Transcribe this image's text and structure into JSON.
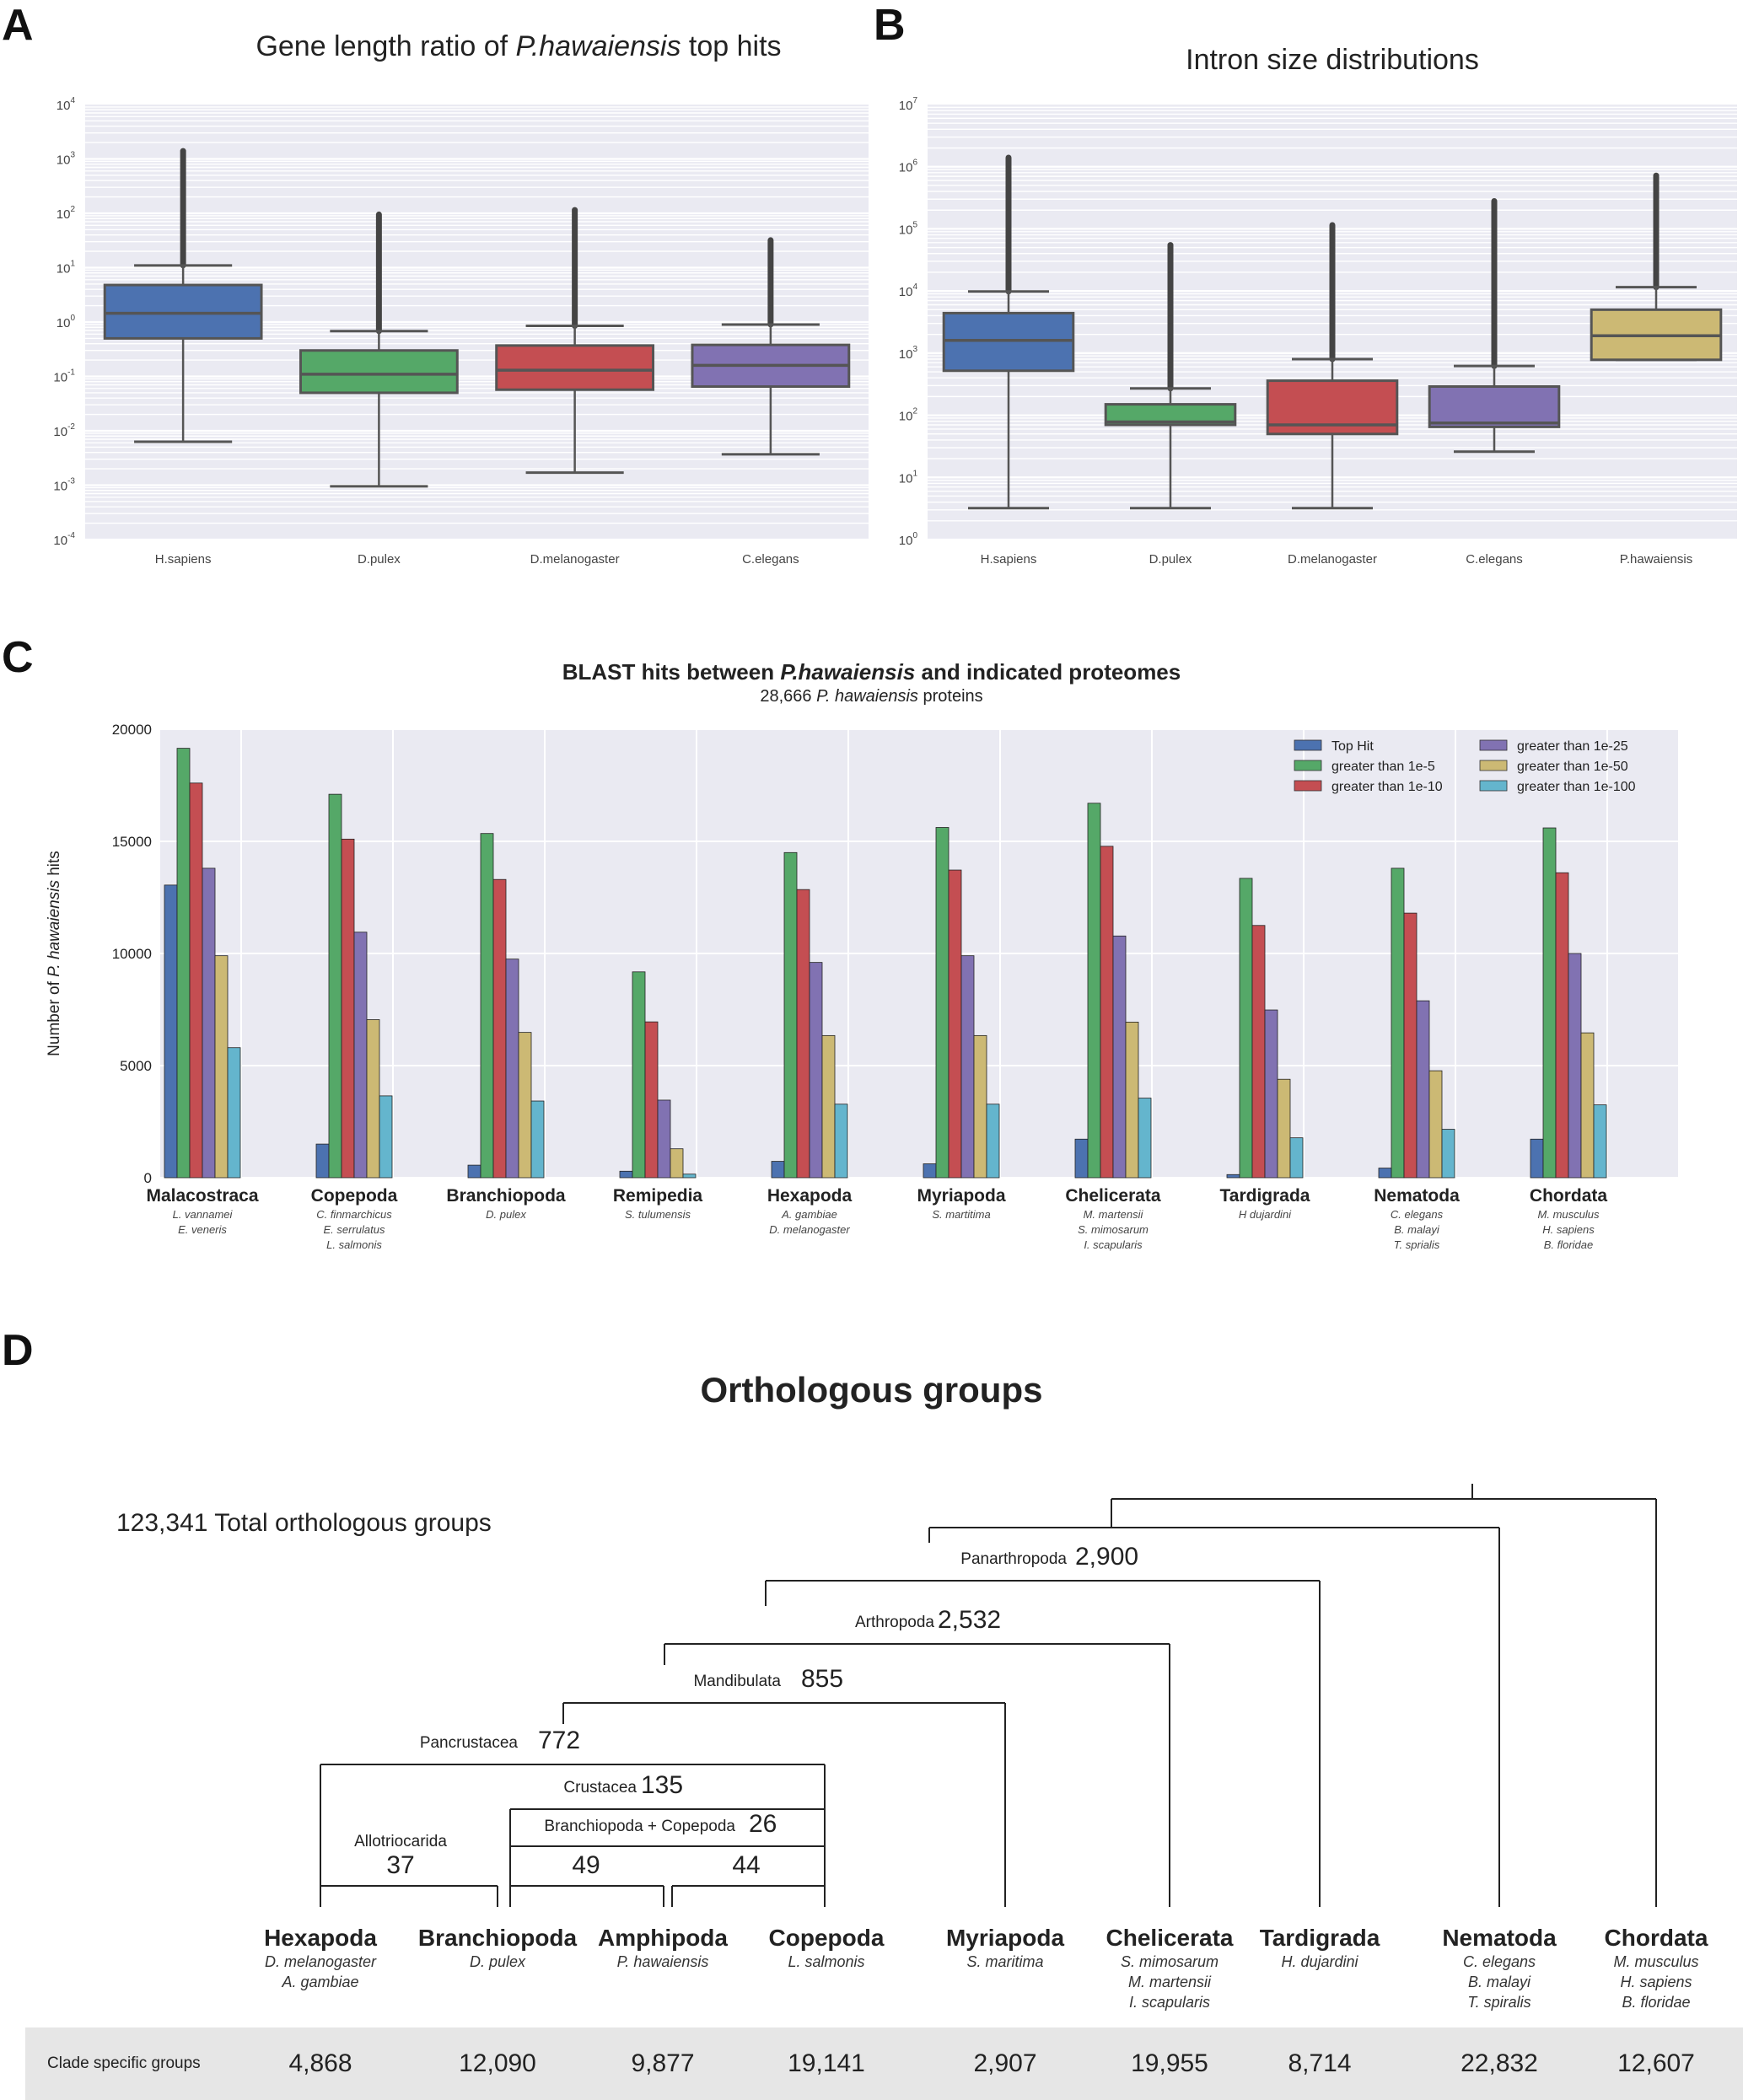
{
  "panels": {
    "A": "A",
    "B": "B",
    "C": "C",
    "D": "D"
  },
  "chart_data": [
    {
      "id": "A",
      "type": "box",
      "title_prefix": "Gene length ratio of ",
      "title_italic": "P.hawaiensis",
      "title_suffix": " top hits",
      "yscale": "log",
      "ylim_exp": [
        -4,
        4
      ],
      "ytick_exponents": [
        -4,
        -3,
        -2,
        -1,
        0,
        1,
        2,
        3,
        4
      ],
      "categories": [
        "H.sapiens",
        "D.pulex",
        "D.melanogaster",
        "C.elegans"
      ],
      "colors": [
        "#4c72b0",
        "#55a868",
        "#c44e52",
        "#8172b2"
      ],
      "boxes": [
        {
          "whislo": 0.0063,
          "q1": 0.5,
          "med": 1.45,
          "q3": 4.8,
          "whishi": 11,
          "flier_max": 1400
        },
        {
          "whislo": 0.00095,
          "q1": 0.05,
          "med": 0.11,
          "q3": 0.3,
          "whishi": 0.68,
          "flier_max": 95
        },
        {
          "whislo": 0.0017,
          "q1": 0.057,
          "med": 0.13,
          "q3": 0.37,
          "whishi": 0.85,
          "flier_max": 115
        },
        {
          "whislo": 0.0037,
          "q1": 0.065,
          "med": 0.16,
          "q3": 0.38,
          "whishi": 0.9,
          "flier_max": 32
        }
      ]
    },
    {
      "id": "B",
      "type": "box",
      "title": "Intron size distributions",
      "yscale": "log",
      "ylim_exp": [
        0,
        7
      ],
      "ytick_exponents": [
        0,
        1,
        2,
        3,
        4,
        5,
        6,
        7
      ],
      "categories": [
        "H.sapiens",
        "D.pulex",
        "D.melanogaster",
        "C.elegans",
        "P.hawaiensis"
      ],
      "colors": [
        "#4c72b0",
        "#55a868",
        "#c44e52",
        "#8172b2",
        "#ccb974"
      ],
      "boxes": [
        {
          "whislo": 3.2,
          "q1": 520,
          "med": 1600,
          "q3": 4400,
          "whishi": 9800,
          "flier_max": 1400000
        },
        {
          "whislo": 3.2,
          "q1": 70,
          "med": 78,
          "q3": 150,
          "whishi": 270,
          "flier_max": 55000
        },
        {
          "whislo": 3.2,
          "q1": 50,
          "med": 70,
          "q3": 360,
          "whishi": 800,
          "flier_max": 115000
        },
        {
          "whislo": 26,
          "q1": 65,
          "med": 75,
          "q3": 290,
          "whishi": 620,
          "flier_max": 280000
        },
        {
          "whislo": 780,
          "q1": 780,
          "med": 1900,
          "q3": 5000,
          "whishi": 11500,
          "flier_max": 720000
        }
      ]
    },
    {
      "id": "C",
      "type": "bar",
      "title_prefix": "BLAST hits between ",
      "title_italic": "P.hawaiensis",
      "title_suffix": " and indicated proteomes",
      "subtitle_prefix": "28,666 ",
      "subtitle_italic": "P. hawaiensis",
      "subtitle_suffix": " proteins",
      "ylabel_prefix": "Number of ",
      "ylabel_italic": "P. hawaiensis",
      "ylabel_suffix": " hits",
      "ylim": [
        0,
        20000
      ],
      "yticks": [
        0,
        5000,
        10000,
        15000,
        20000
      ],
      "grid": true,
      "legend_position": "top-right",
      "categories": [
        {
          "name": "Malacostraca",
          "species": [
            "L. vannamei",
            "E. veneris"
          ]
        },
        {
          "name": "Copepoda",
          "species": [
            "C. finmarchicus",
            "E. serrulatus",
            "L. salmonis"
          ]
        },
        {
          "name": "Branchiopoda",
          "species": [
            "D. pulex"
          ]
        },
        {
          "name": "Remipedia",
          "species": [
            "S. tulumensis"
          ]
        },
        {
          "name": "Hexapoda",
          "species": [
            "A. gambiae",
            "D. melanogaster"
          ]
        },
        {
          "name": "Myriapoda",
          "species": [
            "S. martitima"
          ]
        },
        {
          "name": "Chelicerata",
          "species": [
            "M. martensii",
            "S. mimosarum",
            "I. scapularis"
          ]
        },
        {
          "name": "Tardigrada",
          "species": [
            "H dujardini"
          ]
        },
        {
          "name": "Nematoda",
          "species": [
            "C. elegans",
            "B. malayi",
            "T. sprialis"
          ]
        },
        {
          "name": "Chordata",
          "species": [
            "M. musculus",
            "H. sapiens",
            "B. floridae"
          ]
        }
      ],
      "series": [
        {
          "name": "Top Hit",
          "color": "#4c72b0",
          "values": [
            13050,
            1500,
            560,
            290,
            730,
            620,
            1720,
            140,
            430,
            1720
          ]
        },
        {
          "name": "greater than 1e-5",
          "color": "#55a868",
          "values": [
            19150,
            17100,
            15350,
            9180,
            14500,
            15620,
            16700,
            13350,
            13800,
            15600
          ]
        },
        {
          "name": "greater than 1e-10",
          "color": "#c44e52",
          "values": [
            17600,
            15100,
            13300,
            6950,
            12850,
            13720,
            14780,
            11250,
            11800,
            13600
          ]
        },
        {
          "name": "greater than 1e-25",
          "color": "#8172b2",
          "values": [
            13800,
            10950,
            9750,
            3460,
            9600,
            9900,
            10780,
            7480,
            7890,
            10000
          ]
        },
        {
          "name": "greater than 1e-50",
          "color": "#ccb974",
          "values": [
            9900,
            7050,
            6480,
            1290,
            6340,
            6340,
            6940,
            4390,
            4770,
            6460
          ]
        },
        {
          "name": "greater than 1e-100",
          "color": "#64b5cd",
          "values": [
            5800,
            3650,
            3420,
            160,
            3280,
            3280,
            3550,
            1780,
            2160,
            3250
          ]
        }
      ]
    }
  ],
  "orthology": {
    "title": "Orthologous groups",
    "total": "123,341 Total orthologous groups",
    "nodes": {
      "panarthropoda": {
        "label": "Panarthropoda",
        "value": "2,900"
      },
      "arthropoda": {
        "label": "Arthropoda",
        "value": "2,532"
      },
      "mandibulata": {
        "label": "Mandibulata",
        "value": "855"
      },
      "pancrustacea": {
        "label": "Pancrustacea",
        "value": "772"
      },
      "crustacea": {
        "label": "Crustacea",
        "value": "135"
      },
      "branchio_copepoda": {
        "label": "Branchiopoda + Copepoda",
        "value": "26"
      },
      "allotriocarida": {
        "label": "Allotriocarida",
        "value": "37"
      },
      "branchio_amphi": {
        "label": "",
        "value": "49"
      },
      "amphi_copepoda": {
        "label": "",
        "value": "44"
      }
    },
    "leaves": [
      {
        "name": "Hexapoda",
        "species": [
          "D. melanogaster",
          "A. gambiae"
        ],
        "clade_specific": "4,868"
      },
      {
        "name": "Branchiopoda",
        "species": [
          "D. pulex"
        ],
        "clade_specific": "12,090"
      },
      {
        "name": "Amphipoda",
        "species": [
          "P. hawaiensis"
        ],
        "clade_specific": "9,877"
      },
      {
        "name": "Copepoda",
        "species": [
          "L. salmonis"
        ],
        "clade_specific": "19,141"
      },
      {
        "name": "Myriapoda",
        "species": [
          "S. maritima"
        ],
        "clade_specific": "2,907"
      },
      {
        "name": "Chelicerata",
        "species": [
          "S. mimosarum",
          "M. martensii",
          "I. scapularis"
        ],
        "clade_specific": "19,955"
      },
      {
        "name": "Tardigrada",
        "species": [
          "H. dujardini"
        ],
        "clade_specific": "8,714"
      },
      {
        "name": "Nematoda",
        "species": [
          "C. elegans",
          "B. malayi",
          "T. spiralis"
        ],
        "clade_specific": "22,832"
      },
      {
        "name": "Chordata",
        "species": [
          "M. musculus",
          "H. sapiens",
          "B. floridae"
        ],
        "clade_specific": "12,607"
      }
    ],
    "clade_row_label": "Clade specific groups"
  }
}
